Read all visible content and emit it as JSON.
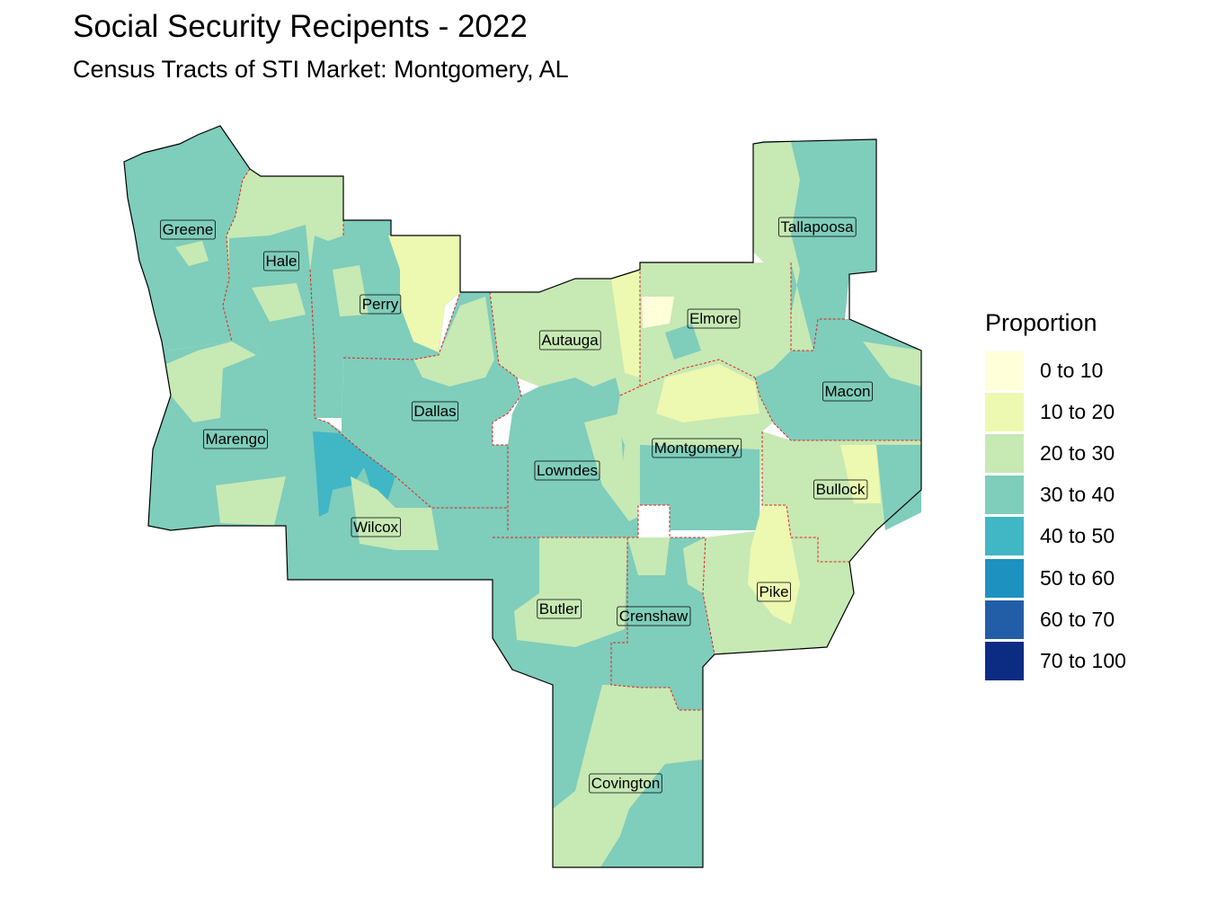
{
  "title": "Social Security Recipents - 2022",
  "subtitle": "Census Tracts of STI Market: Montgomery, AL",
  "legend": {
    "title": "Proportion",
    "items": [
      {
        "label": "0 to 10",
        "color": "#ffffd9"
      },
      {
        "label": "10 to 20",
        "color": "#edf8b1"
      },
      {
        "label": "20 to 30",
        "color": "#c7e9b4"
      },
      {
        "label": "30 to 40",
        "color": "#7fcdbb"
      },
      {
        "label": "40 to 50",
        "color": "#41b6c4"
      },
      {
        "label": "50 to 60",
        "color": "#1d91c0"
      },
      {
        "label": "60 to 70",
        "color": "#225ea8"
      },
      {
        "label": "70 to 100",
        "color": "#0c2c84"
      }
    ]
  },
  "counties": [
    {
      "name": "Greene",
      "class": "30 to 40"
    },
    {
      "name": "Hale",
      "class": "30 to 40"
    },
    {
      "name": "Perry",
      "class": "30 to 40"
    },
    {
      "name": "Marengo",
      "class": "30 to 40"
    },
    {
      "name": "Dallas",
      "class": "30 to 40"
    },
    {
      "name": "Wilcox",
      "class": "30 to 40"
    },
    {
      "name": "Autauga",
      "class": "20 to 30"
    },
    {
      "name": "Elmore",
      "class": "20 to 30"
    },
    {
      "name": "Tallapoosa",
      "class": "30 to 40"
    },
    {
      "name": "Macon",
      "class": "30 to 40"
    },
    {
      "name": "Montgomery",
      "class": "20 to 30"
    },
    {
      "name": "Lowndes",
      "class": "30 to 40"
    },
    {
      "name": "Bullock",
      "class": "20 to 30"
    },
    {
      "name": "Butler",
      "class": "30 to 40"
    },
    {
      "name": "Crenshaw",
      "class": "30 to 40"
    },
    {
      "name": "Pike",
      "class": "20 to 30"
    },
    {
      "name": "Covington",
      "class": "20 to 30"
    }
  ],
  "colors": {
    "county_border": "#e0241b",
    "outline": "#000000"
  }
}
